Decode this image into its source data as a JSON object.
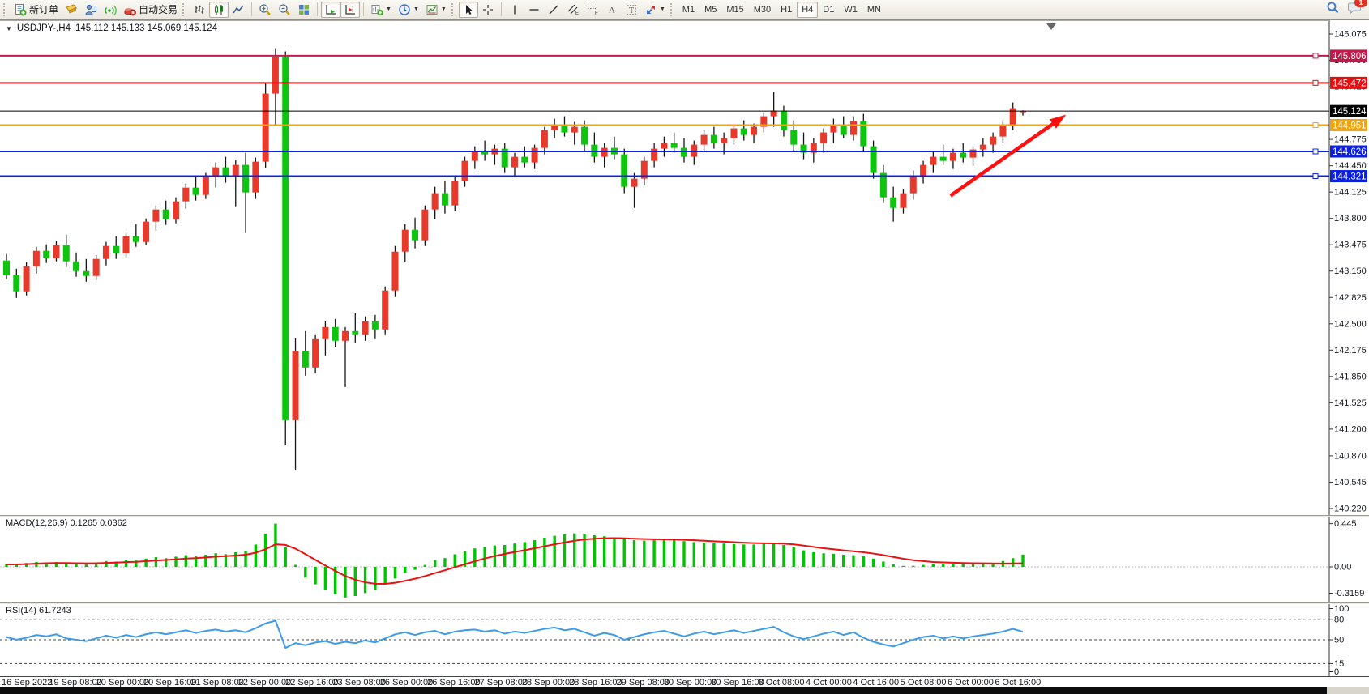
{
  "toolbar": {
    "new_order_label": "新订单",
    "auto_trading_label": "自动交易",
    "timeframes": [
      "M1",
      "M5",
      "M15",
      "M30",
      "H1",
      "H4",
      "D1",
      "W1",
      "MN"
    ],
    "active_timeframe": "H4",
    "notification_badge": "1"
  },
  "chart": {
    "collapse_icon": "▼",
    "title_symbol": "USDJPY-,H4",
    "title_ohlc": "145.112 145.133 145.069 145.124"
  },
  "price_axis": {
    "ticks": [
      "146.075",
      "145.750",
      "145.425",
      "144.775",
      "144.450",
      "144.125",
      "143.800",
      "143.475",
      "143.150",
      "142.825",
      "142.500",
      "142.175",
      "141.850",
      "141.525",
      "141.200",
      "140.870",
      "140.545",
      "140.220"
    ]
  },
  "hlines": [
    {
      "price": 145.806,
      "label": "145.806",
      "color": "#c2194b",
      "width": 2,
      "type": "resistance-line"
    },
    {
      "price": 145.472,
      "label": "145.472",
      "color": "#ea0c0c",
      "width": 2,
      "type": "resistance-line"
    },
    {
      "price": 145.124,
      "label": "145.124",
      "color": "#000000",
      "width": 1,
      "type": "current-price-line"
    },
    {
      "price": 144.951,
      "label": "144.951",
      "color": "#f0a30a",
      "width": 2,
      "type": "support-line"
    },
    {
      "price": 144.626,
      "label": "144.626",
      "color": "#0a1fe0",
      "width": 2,
      "type": "support-line"
    },
    {
      "price": 144.321,
      "label": "144.321",
      "color": "#0a1fe0",
      "width": 2,
      "type": "support-line"
    }
  ],
  "time_axis": {
    "labels": [
      "16 Sep 2022",
      "19 Sep 08:00",
      "20 Sep 00:00",
      "20 Sep 16:00",
      "21 Sep 08:00",
      "22 Sep 00:00",
      "22 Sep 16:00",
      "23 Sep 08:00",
      "26 Sep 00:00",
      "26 Sep 16:00",
      "27 Sep 08:00",
      "28 Sep 00:00",
      "28 Sep 16:00",
      "29 Sep 08:00",
      "30 Sep 00:00",
      "30 Sep 16:00",
      "3 Oct 08:00",
      "4 Oct 00:00",
      "4 Oct 16:00",
      "5 Oct 08:00",
      "6 Oct 00:00",
      "6 Oct 16:00"
    ]
  },
  "macd_panel": {
    "label": "MACD(12,26,9) 0.1265 0.0362",
    "axis_labels": [
      "0.445",
      "0.00",
      "-0.3159"
    ]
  },
  "rsi_panel": {
    "label": "RSI(14) 61.7243",
    "axis_labels": [
      "100",
      "80",
      "50",
      "15",
      "0"
    ]
  },
  "chart_data": {
    "type": "candlestick",
    "symbol": "USDJPY-",
    "timeframe": "H4",
    "title": "USDJPY-,H4",
    "current_ohlc": {
      "open": 145.112,
      "high": 145.133,
      "low": 145.069,
      "close": 145.124
    },
    "price_axis_range": [
      140.22,
      146.075
    ],
    "bull_color": "#e8392b",
    "bear_color": "#0fc40f",
    "wick_color": "#151515",
    "candles": [
      [
        143.28,
        143.36,
        143.05,
        143.1
      ],
      [
        143.1,
        143.18,
        142.82,
        142.9
      ],
      [
        142.9,
        143.26,
        142.85,
        143.21
      ],
      [
        143.21,
        143.45,
        143.12,
        143.4
      ],
      [
        143.4,
        143.48,
        143.25,
        143.31
      ],
      [
        143.31,
        143.52,
        143.27,
        143.47
      ],
      [
        143.47,
        143.6,
        143.2,
        143.27
      ],
      [
        143.27,
        143.38,
        143.08,
        143.15
      ],
      [
        143.15,
        143.3,
        143.02,
        143.09
      ],
      [
        143.09,
        143.35,
        143.04,
        143.3
      ],
      [
        143.3,
        143.51,
        143.22,
        143.46
      ],
      [
        143.46,
        143.58,
        143.3,
        143.37
      ],
      [
        143.37,
        143.62,
        143.32,
        143.58
      ],
      [
        143.58,
        143.73,
        143.45,
        143.51
      ],
      [
        143.51,
        143.8,
        143.47,
        143.76
      ],
      [
        143.76,
        143.96,
        143.65,
        143.91
      ],
      [
        143.91,
        144.02,
        143.72,
        143.79
      ],
      [
        143.79,
        144.06,
        143.74,
        144.01
      ],
      [
        144.01,
        144.23,
        143.92,
        144.18
      ],
      [
        144.18,
        144.33,
        144.02,
        144.09
      ],
      [
        144.09,
        144.36,
        144.04,
        144.31
      ],
      [
        144.31,
        144.49,
        144.18,
        144.43
      ],
      [
        144.43,
        144.56,
        144.24,
        144.32
      ],
      [
        144.32,
        144.52,
        143.94,
        144.46
      ],
      [
        144.46,
        144.61,
        143.62,
        144.12
      ],
      [
        144.12,
        144.55,
        144.04,
        144.5
      ],
      [
        144.5,
        145.48,
        144.42,
        145.34
      ],
      [
        145.34,
        145.9,
        144.95,
        145.79
      ],
      [
        145.79,
        145.86,
        141.0,
        141.31
      ],
      [
        141.31,
        142.32,
        140.7,
        142.16
      ],
      [
        142.16,
        142.41,
        141.86,
        141.96
      ],
      [
        141.96,
        142.36,
        141.89,
        142.31
      ],
      [
        142.31,
        142.53,
        142.11,
        142.46
      ],
      [
        142.46,
        142.56,
        142.21,
        142.29
      ],
      [
        142.29,
        142.46,
        141.72,
        142.41
      ],
      [
        142.41,
        142.63,
        142.26,
        142.36
      ],
      [
        142.36,
        142.59,
        142.29,
        142.53
      ],
      [
        142.53,
        142.61,
        142.31,
        142.43
      ],
      [
        142.43,
        142.96,
        142.36,
        142.91
      ],
      [
        142.91,
        143.46,
        142.83,
        143.39
      ],
      [
        143.39,
        143.73,
        143.26,
        143.66
      ],
      [
        143.66,
        143.81,
        143.43,
        143.53
      ],
      [
        143.53,
        143.96,
        143.46,
        143.91
      ],
      [
        143.91,
        144.19,
        143.79,
        144.11
      ],
      [
        144.11,
        144.26,
        143.86,
        143.96
      ],
      [
        143.96,
        144.31,
        143.89,
        144.26
      ],
      [
        144.26,
        144.56,
        144.19,
        144.51
      ],
      [
        144.51,
        144.69,
        144.41,
        144.63
      ],
      [
        144.63,
        144.76,
        144.51,
        144.59
      ],
      [
        144.59,
        144.71,
        144.46,
        144.66
      ],
      [
        144.66,
        144.73,
        144.36,
        144.43
      ],
      [
        144.43,
        144.61,
        144.31,
        144.56
      ],
      [
        144.56,
        144.69,
        144.43,
        144.49
      ],
      [
        144.49,
        144.71,
        144.41,
        144.67
      ],
      [
        144.67,
        144.93,
        144.59,
        144.89
      ],
      [
        144.89,
        145.03,
        144.79,
        144.96
      ],
      [
        144.96,
        145.06,
        144.81,
        144.86
      ],
      [
        144.86,
        144.99,
        144.71,
        144.93
      ],
      [
        144.93,
        145.01,
        144.63,
        144.71
      ],
      [
        144.71,
        144.86,
        144.49,
        144.56
      ],
      [
        144.56,
        144.73,
        144.43,
        144.67
      ],
      [
        144.67,
        144.81,
        144.53,
        144.59
      ],
      [
        144.59,
        144.66,
        144.11,
        144.19
      ],
      [
        144.19,
        144.36,
        143.93,
        144.29
      ],
      [
        144.29,
        144.56,
        144.21,
        144.51
      ],
      [
        144.51,
        144.73,
        144.43,
        144.66
      ],
      [
        144.66,
        144.81,
        144.56,
        144.73
      ],
      [
        144.73,
        144.86,
        144.61,
        144.67
      ],
      [
        144.67,
        144.79,
        144.49,
        144.56
      ],
      [
        144.56,
        144.76,
        144.46,
        144.71
      ],
      [
        144.71,
        144.89,
        144.63,
        144.83
      ],
      [
        144.83,
        144.93,
        144.66,
        144.73
      ],
      [
        144.73,
        144.86,
        144.59,
        144.79
      ],
      [
        144.79,
        144.96,
        144.71,
        144.91
      ],
      [
        144.91,
        145.01,
        144.76,
        144.83
      ],
      [
        144.83,
        144.97,
        144.73,
        144.93
      ],
      [
        144.93,
        145.11,
        144.86,
        145.06
      ],
      [
        145.06,
        145.36,
        144.93,
        145.13
      ],
      [
        145.13,
        145.19,
        144.81,
        144.89
      ],
      [
        144.89,
        145.01,
        144.63,
        144.71
      ],
      [
        144.71,
        144.86,
        144.53,
        144.61
      ],
      [
        144.61,
        144.79,
        144.49,
        144.73
      ],
      [
        144.73,
        144.91,
        144.61,
        144.86
      ],
      [
        144.86,
        145.03,
        144.73,
        144.96
      ],
      [
        144.96,
        145.06,
        144.79,
        144.83
      ],
      [
        144.83,
        145.06,
        144.76,
        145.0
      ],
      [
        145.0,
        145.09,
        144.63,
        144.69
      ],
      [
        144.69,
        144.76,
        144.29,
        144.36
      ],
      [
        144.36,
        144.46,
        143.99,
        144.06
      ],
      [
        144.06,
        144.19,
        143.76,
        143.93
      ],
      [
        143.93,
        144.16,
        143.86,
        144.11
      ],
      [
        144.11,
        144.39,
        144.03,
        144.33
      ],
      [
        144.33,
        144.51,
        144.23,
        144.46
      ],
      [
        144.46,
        144.63,
        144.36,
        144.56
      ],
      [
        144.56,
        144.71,
        144.46,
        144.51
      ],
      [
        144.51,
        144.66,
        144.41,
        144.61
      ],
      [
        144.61,
        144.73,
        144.49,
        144.55
      ],
      [
        144.55,
        144.69,
        144.45,
        144.65
      ],
      [
        144.65,
        144.79,
        144.56,
        144.71
      ],
      [
        144.71,
        144.86,
        144.61,
        144.81
      ],
      [
        144.81,
        145.01,
        144.73,
        144.96
      ],
      [
        144.96,
        145.23,
        144.89,
        145.16
      ],
      [
        145.112,
        145.133,
        145.069,
        145.124
      ]
    ],
    "macd": {
      "params": "12,26,9",
      "current_macd": 0.1265,
      "current_signal": 0.0362,
      "axis_range": [
        -0.3159,
        0.445
      ],
      "histogram_color": "#00c400",
      "signal_color": "#e81212",
      "histogram": [
        0.03,
        0.025,
        0.04,
        0.05,
        0.042,
        0.05,
        0.04,
        0.032,
        0.028,
        0.045,
        0.06,
        0.055,
        0.07,
        0.065,
        0.085,
        0.1,
        0.09,
        0.105,
        0.12,
        0.11,
        0.125,
        0.14,
        0.13,
        0.15,
        0.165,
        0.23,
        0.34,
        0.445,
        0.2,
        0.02,
        -0.11,
        -0.18,
        -0.235,
        -0.28,
        -0.3159,
        -0.3,
        -0.27,
        -0.235,
        -0.18,
        -0.12,
        -0.06,
        -0.03,
        0.02,
        0.07,
        0.09,
        0.13,
        0.16,
        0.19,
        0.205,
        0.22,
        0.225,
        0.24,
        0.255,
        0.275,
        0.3,
        0.32,
        0.335,
        0.345,
        0.34,
        0.325,
        0.315,
        0.3,
        0.285,
        0.275,
        0.27,
        0.275,
        0.28,
        0.275,
        0.265,
        0.255,
        0.25,
        0.245,
        0.24,
        0.235,
        0.23,
        0.23,
        0.235,
        0.24,
        0.225,
        0.2,
        0.17,
        0.15,
        0.14,
        0.135,
        0.125,
        0.12,
        0.11,
        0.085,
        0.055,
        0.025,
        0.01,
        0.01,
        0.02,
        0.028,
        0.03,
        0.03,
        0.028,
        0.025,
        0.03,
        0.04,
        0.06,
        0.09,
        0.1265
      ],
      "signal": [
        0.025,
        0.025,
        0.028,
        0.033,
        0.037,
        0.04,
        0.04,
        0.038,
        0.036,
        0.037,
        0.041,
        0.044,
        0.049,
        0.052,
        0.058,
        0.066,
        0.071,
        0.077,
        0.085,
        0.09,
        0.097,
        0.105,
        0.11,
        0.117,
        0.125,
        0.145,
        0.182,
        0.232,
        0.226,
        0.187,
        0.131,
        0.072,
        0.014,
        -0.042,
        -0.094,
        -0.133,
        -0.159,
        -0.174,
        -0.175,
        -0.164,
        -0.144,
        -0.122,
        -0.095,
        -0.064,
        -0.035,
        -0.004,
        0.027,
        0.058,
        0.086,
        0.111,
        0.133,
        0.153,
        0.172,
        0.192,
        0.212,
        0.232,
        0.251,
        0.269,
        0.282,
        0.29,
        0.295,
        0.296,
        0.294,
        0.29,
        0.286,
        0.284,
        0.283,
        0.281,
        0.278,
        0.274,
        0.269,
        0.264,
        0.259,
        0.254,
        0.249,
        0.245,
        0.243,
        0.242,
        0.239,
        0.231,
        0.219,
        0.205,
        0.192,
        0.181,
        0.17,
        0.16,
        0.15,
        0.137,
        0.121,
        0.102,
        0.083,
        0.069,
        0.059,
        0.05,
        0.046,
        0.043,
        0.04,
        0.038,
        0.036,
        0.035,
        0.034,
        0.035,
        0.0362
      ]
    },
    "rsi": {
      "period": 14,
      "current": 61.7243,
      "levels": [
        80,
        50,
        15
      ],
      "line_color": "#3d9be9",
      "values": [
        54,
        50,
        53,
        57,
        55,
        58,
        52,
        50,
        48,
        52,
        56,
        53,
        57,
        54,
        58,
        61,
        58,
        61,
        64,
        60,
        63,
        65,
        62,
        64,
        61,
        67,
        74,
        78,
        38,
        45,
        42,
        46,
        48,
        44,
        47,
        45,
        49,
        46,
        52,
        58,
        61,
        57,
        61,
        63,
        58,
        62,
        64,
        65,
        62,
        64,
        59,
        62,
        60,
        63,
        66,
        68,
        64,
        66,
        61,
        56,
        60,
        57,
        50,
        54,
        58,
        61,
        63,
        59,
        55,
        59,
        62,
        58,
        61,
        64,
        60,
        63,
        66,
        69,
        61,
        55,
        51,
        55,
        59,
        62,
        57,
        61,
        53,
        47,
        43,
        40,
        45,
        50,
        54,
        56,
        52,
        55,
        52,
        55,
        57,
        59,
        62,
        66,
        61.7243
      ]
    },
    "trend_arrow": {
      "color": "#fe1010",
      "from": {
        "candle_frac": 0.715,
        "price": 144.08
      },
      "to": {
        "candle_frac": 0.802,
        "price": 145.08
      }
    }
  }
}
